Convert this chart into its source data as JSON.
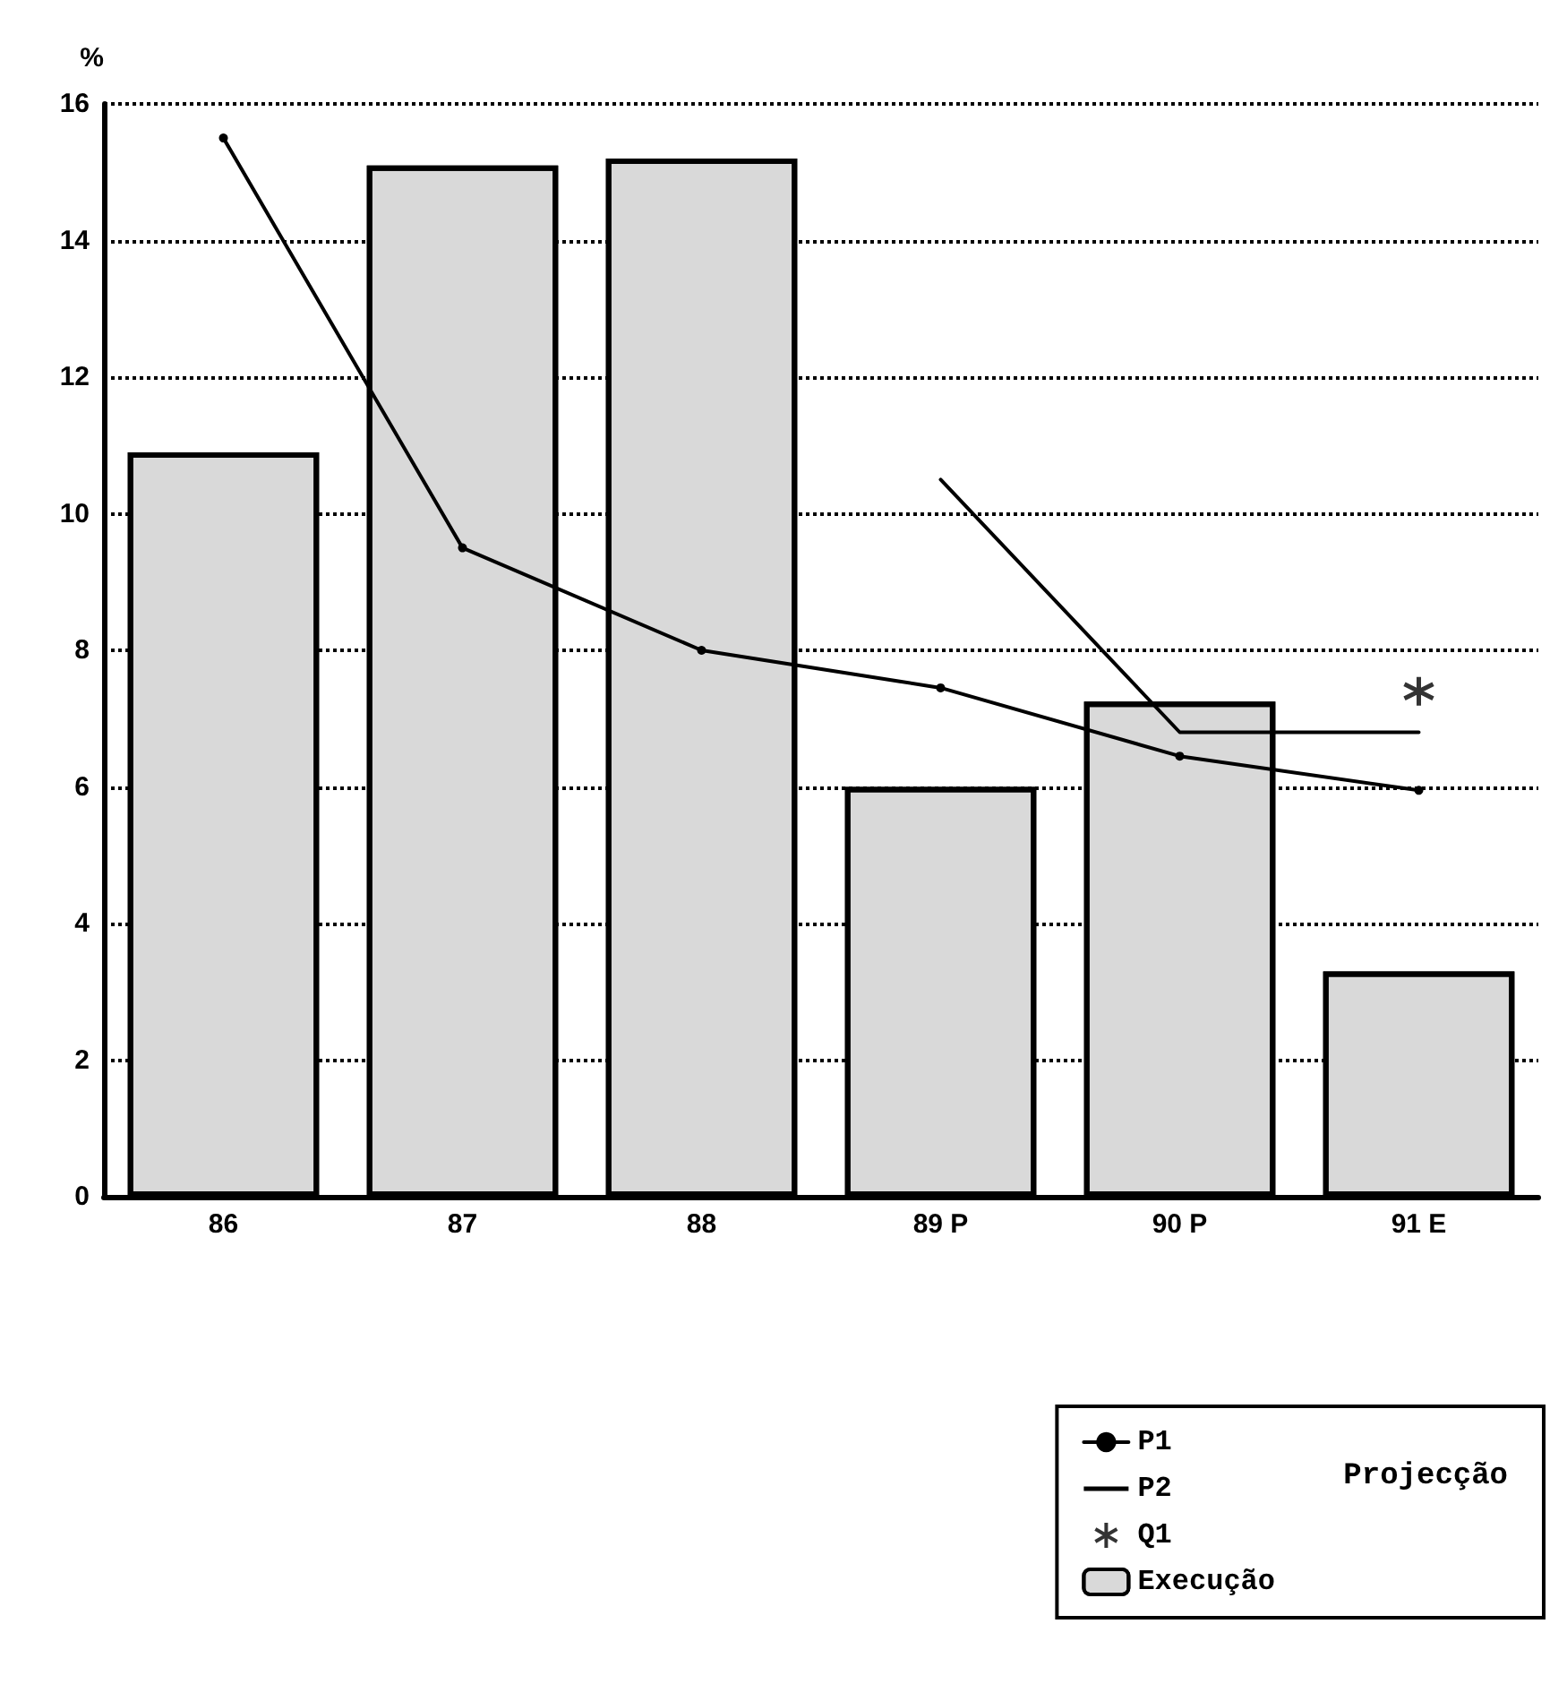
{
  "chart_data": {
    "type": "bar",
    "ylabel": "%",
    "categories": [
      "86",
      "87",
      "88",
      "89 P",
      "90 P",
      "91 E"
    ],
    "series": [
      {
        "name": "P1",
        "type": "line",
        "color": "#000000",
        "marker": "circle",
        "values": [
          15.5,
          9.5,
          8.0,
          7.45,
          6.45,
          5.95
        ]
      },
      {
        "name": "P2",
        "type": "line",
        "color": "#000000",
        "marker": "none",
        "values": [
          null,
          null,
          null,
          10.5,
          6.8,
          6.8
        ]
      },
      {
        "name": "Q1",
        "type": "scatter",
        "color": "#000000",
        "marker": "cross",
        "values": [
          null,
          null,
          null,
          null,
          null,
          7.4
        ]
      },
      {
        "name": "Execução",
        "color": "#d9d9d9",
        "values": [
          10.9,
          15.1,
          15.2,
          6.0,
          7.25,
          3.3
        ]
      }
    ],
    "annotations": [
      "Projecção"
    ],
    "ylim": [
      0,
      16
    ],
    "yticks": [
      0,
      2,
      4,
      6,
      8,
      10,
      12,
      14,
      16
    ],
    "grid": "y",
    "legend": "bottom right",
    "line_style": "solid"
  }
}
